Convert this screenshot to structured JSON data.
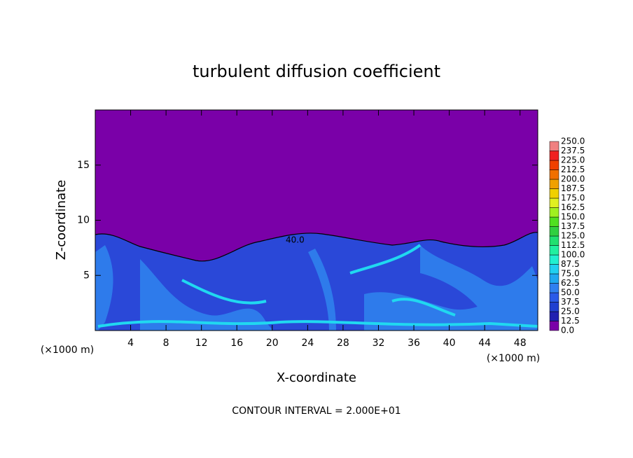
{
  "chart_data": {
    "type": "contour",
    "title": "turbulent diffusion coefficient",
    "xlabel": "X-coordinate",
    "ylabel": "Z-coordinate",
    "unit_labels": [
      "(×1000 m)",
      "(×1000 m)"
    ],
    "annotation": "40.0",
    "footnote": "CONTOUR INTERVAL = 2.000E+01",
    "xlim": [
      0,
      50
    ],
    "xticks": [
      4,
      8,
      12,
      16,
      20,
      24,
      28,
      32,
      36,
      40,
      44,
      48
    ],
    "ylim": [
      0,
      20
    ],
    "yticks": [
      5,
      10,
      15
    ],
    "colorbar": {
      "lim": [
        0,
        250
      ],
      "ticks": [
        {
          "value": 0,
          "label": "0.0"
        },
        {
          "value": 12.5,
          "label": "12.5"
        },
        {
          "value": 25,
          "label": "25.0"
        },
        {
          "value": 37.5,
          "label": "37.5"
        },
        {
          "value": 50,
          "label": "50.0"
        },
        {
          "value": 62.5,
          "label": "62.5"
        },
        {
          "value": 75,
          "label": "75.0"
        },
        {
          "value": 87.5,
          "label": "87.5"
        },
        {
          "value": 100,
          "label": "100.0"
        },
        {
          "value": 112.5,
          "label": "112.5"
        },
        {
          "value": 125,
          "label": "125.0"
        },
        {
          "value": 137.5,
          "label": "137.5"
        },
        {
          "value": 150,
          "label": "150.0"
        },
        {
          "value": 162.5,
          "label": "162.5"
        },
        {
          "value": 175,
          "label": "175.0"
        },
        {
          "value": 187.5,
          "label": "187.5"
        },
        {
          "value": 200,
          "label": "200.0"
        },
        {
          "value": 212.5,
          "label": "212.5"
        },
        {
          "value": 225,
          "label": "225.0"
        },
        {
          "value": 237.5,
          "label": "237.5"
        },
        {
          "value": 250,
          "label": "250.0"
        }
      ],
      "colors": [
        "#7a00a8",
        "#2020b0",
        "#2040d0",
        "#2a5ae8",
        "#3080f0",
        "#20a8f0",
        "#20d0f0",
        "#20f0d0",
        "#20f0a0",
        "#20e070",
        "#30d040",
        "#50e020",
        "#a0f020",
        "#e0f020",
        "#f0d000",
        "#f0a000",
        "#f07000",
        "#f04000",
        "#f02020",
        "#f08080"
      ]
    }
  }
}
